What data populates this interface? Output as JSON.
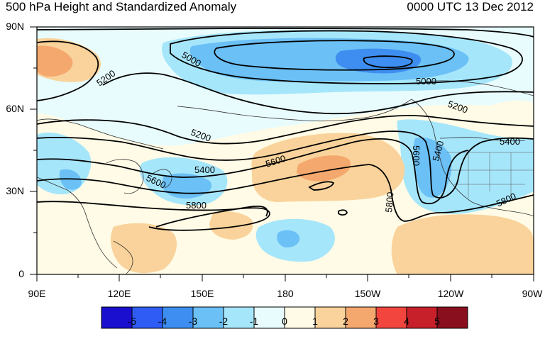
{
  "header": {
    "title": "500 hPa Height and Standardized Anomaly",
    "timestamp": "0000 UTC 13 Dec 2012"
  },
  "map": {
    "lat_labels": [
      "90N",
      "60N",
      "30N",
      "0"
    ],
    "lon_labels": [
      "90E",
      "120E",
      "150E",
      "180",
      "150W",
      "120W",
      "90W"
    ],
    "contour_labels": [
      "5000",
      "5000",
      "5200",
      "5200",
      "5200",
      "5400",
      "5400",
      "5400",
      "5600",
      "5600",
      "5600",
      "5800",
      "5800",
      "5800"
    ]
  },
  "colorbar": {
    "labels": [
      "-5",
      "-4",
      "-3",
      "-2",
      "-1",
      "0",
      "1",
      "2",
      "3",
      "4",
      "5"
    ],
    "colors": [
      "#1a0fcf",
      "#2e5cf5",
      "#3d8ef0",
      "#6bc0f5",
      "#a6e6fb",
      "#e8fcfd",
      "#fffbe6",
      "#f9d39b",
      "#f4a86e",
      "#f2453e",
      "#c8202a",
      "#8a0f1e"
    ]
  },
  "colors": {
    "ocean_base": "#fffbe6",
    "contour": "#000000"
  }
}
